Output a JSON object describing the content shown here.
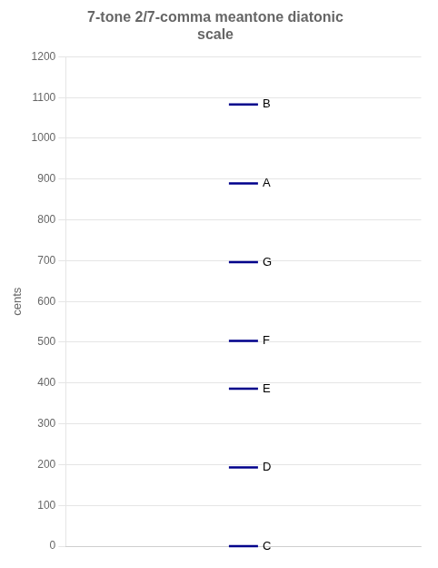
{
  "chart_data": {
    "type": "scatter",
    "title": "7-tone 2/7-comma meantone diatonic\nscale",
    "ylabel": "cents",
    "values": [
      0,
      193.16,
      386.31,
      503.42,
      696.58,
      889.74,
      1082.89
    ],
    "annotations": [
      "C",
      "D",
      "E",
      "F",
      "G",
      "A",
      "B"
    ],
    "color": "#00008B",
    "marker": "line",
    "ylim": [
      0,
      1200
    ],
    "yticks": [
      0,
      100,
      200,
      300,
      400,
      500,
      600,
      700,
      800,
      900,
      1000,
      1100,
      1200
    ],
    "grid": true,
    "tick_labels": "y"
  }
}
